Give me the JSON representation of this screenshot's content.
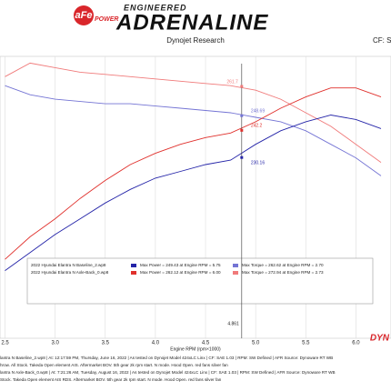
{
  "header": {
    "brand": "aFe",
    "brand_sub": "POWER",
    "tagline": "ENGINEERED",
    "title": "ADRENALINE",
    "subtitle": "Dynojet Research",
    "cf": "CF: S",
    "corner_logo": "DYN"
  },
  "chart_data": {
    "type": "line",
    "x_label": "Engine RPM (rpm×1000)",
    "x": [
      2.5,
      2.75,
      3.0,
      3.25,
      3.5,
      3.75,
      4.0,
      4.25,
      4.5,
      4.75,
      5.0,
      5.25,
      5.5,
      5.75,
      6.0,
      6.25
    ],
    "xlim": [
      2.45,
      6.35
    ],
    "xticks": [
      {
        "value": 2.5,
        "label": "2.5"
      },
      {
        "value": 3.0,
        "label": "3.0"
      },
      {
        "value": 3.5,
        "label": "3.5"
      },
      {
        "value": 4.0,
        "label": "4.0"
      },
      {
        "value": 4.5,
        "label": "4.5"
      },
      {
        "value": 5.0,
        "label": "5.0"
      },
      {
        "value": 5.5,
        "label": "5.5"
      },
      {
        "value": 6.0,
        "label": "6.0"
      }
    ],
    "ylim": [
      150,
      275
    ],
    "grid": true,
    "series": [
      {
        "name": "Axle-Back Torque",
        "color": "#f07a7a",
        "values": [
          266,
          272,
          270,
          268,
          267,
          266,
          265,
          264,
          263,
          262,
          260,
          256,
          250,
          244,
          236,
          228
        ]
      },
      {
        "name": "Baseline Torque",
        "color": "#7474d4",
        "values": [
          262,
          258,
          256,
          255,
          254,
          254,
          253,
          252,
          251,
          250,
          248,
          246,
          242,
          236,
          230,
          222
        ]
      },
      {
        "name": "Axle-Back Power",
        "color": "#e0302c",
        "values": [
          185,
          195,
          203,
          212,
          220,
          227,
          232,
          236,
          239,
          241,
          246,
          252,
          257,
          261,
          261,
          257
        ]
      },
      {
        "name": "Baseline Power",
        "color": "#2424a8",
        "values": [
          180,
          188,
          196,
          203,
          210,
          216,
          221,
          224,
          227,
          229,
          236,
          242,
          246,
          249,
          247,
          243
        ]
      }
    ],
    "cursor": 4.861,
    "cursor_values": [
      {
        "value": 261.7,
        "series": 0
      },
      {
        "value": 248.69,
        "series": 1
      },
      {
        "value": 242.2,
        "series": 2
      },
      {
        "value": 230.16,
        "series": 3
      }
    ],
    "legend": [
      {
        "file": "2022 Hyundai Elantra N Baseline_2.wp8",
        "power": "Max Power = 249.43 at Engine RPM = 5.75",
        "torque": "Max Torque = 262.62 at Engine RPM = 2.70",
        "color": "#2424a8",
        "torque_color": "#7474d4"
      },
      {
        "file": "2022 Hyundai Elantra N Axle-Back_0.wp8",
        "power": "Max Power = 262.12 at Engine RPM = 6.00",
        "torque": "Max Torque = 272.94 at Engine RPM = 2.73",
        "color": "#e0302c",
        "torque_color": "#f07a7a"
      }
    ],
    "notes": [
      "lantra N Baseline_2.wp8 | At: 12:17:59 PM, Thursday, June 16, 2022 | As tested on Dynojet Model 424xLC Linx | CF: SAE 1.03 | RPM: SW Defined | AFR Source: Dynoware RT WB",
      "hrow. All Stock. Takeda Open element AIS. Aftermarket BOV. 5th gear 2k rpm start. N mode. Hood Open. red fans silver fan",
      "lantra N Axle-Back_0.wp8 | At: 7:21:26 AM, Tuesday, August 16, 2022 | As tested on Dynojet Model 424xLC Linx | CF: SAE 1.03 | RPM: SW Defined | AFR Source: Dynoware RT WB",
      "Stock. Takeda Open element AIS RDS. Aftermarket BOV. 5th gear 2k rpm start. N mode. Hood Open. red fans silver fan"
    ]
  }
}
